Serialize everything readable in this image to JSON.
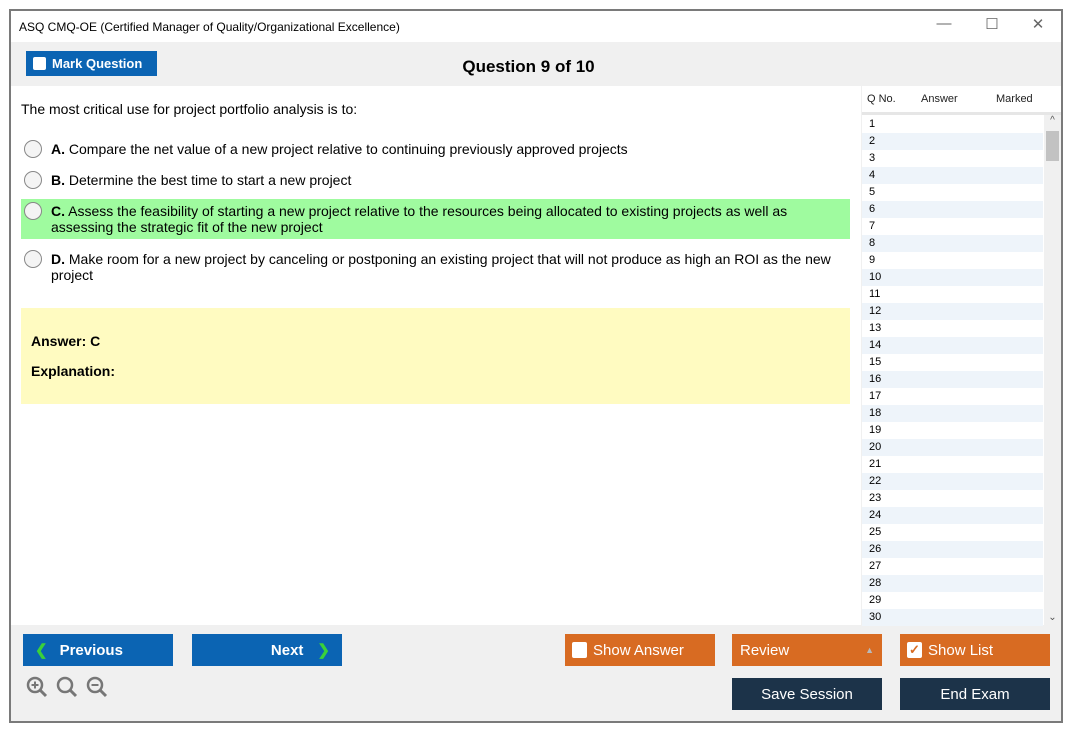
{
  "window": {
    "title": "ASQ CMQ-OE (Certified Manager of Quality/Organizational Excellence)"
  },
  "toolbar": {
    "mark_label": "Mark Question",
    "question_counter": "Question 9 of 10"
  },
  "question": {
    "text": "The most critical use for project portfolio analysis is to:",
    "options": [
      {
        "letter": "A.",
        "text": "Compare the net value of a new project relative to continuing previously approved projects",
        "correct": false
      },
      {
        "letter": "B.",
        "text": "Determine the best time to start a new project",
        "correct": false
      },
      {
        "letter": "C.",
        "text": "Assess the feasibility of starting a new project relative to the resources being allocated to existing projects as well as assessing the strategic fit of the new project",
        "correct": true
      },
      {
        "letter": "D.",
        "text": "Make room for a new project by canceling or postponing an existing project that will not produce as high an ROI as the new project",
        "correct": false
      }
    ],
    "answer": "Answer: C",
    "explanation": "Explanation:"
  },
  "sidebar": {
    "headers": [
      "Q No.",
      "Answer",
      "Marked"
    ],
    "rows": [
      "1",
      "2",
      "3",
      "4",
      "5",
      "6",
      "7",
      "8",
      "9",
      "10",
      "11",
      "12",
      "13",
      "14",
      "15",
      "16",
      "17",
      "18",
      "19",
      "20",
      "21",
      "22",
      "23",
      "24",
      "25",
      "26",
      "27",
      "28",
      "29",
      "30"
    ]
  },
  "footer": {
    "previous": "Previous",
    "next": "Next",
    "show_answer": "Show Answer",
    "review": "Review",
    "show_list": "Show List",
    "save_session": "Save Session",
    "end_exam": "End Exam"
  },
  "colors": {
    "blue": "#0b64b3",
    "orange": "#d86b22",
    "dark": "#1c3349",
    "correct": "#9ffb9f",
    "answer_bg": "#fffbc1"
  }
}
